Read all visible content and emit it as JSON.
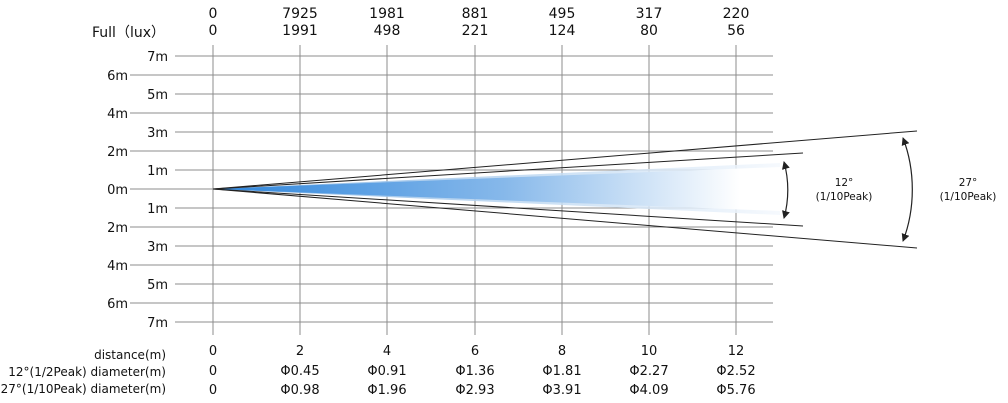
{
  "header": {
    "lux_label": "Full（lux）",
    "row1": [
      "0",
      "7925",
      "1981",
      "881",
      "495",
      "317",
      "220"
    ],
    "row2": [
      "0",
      "1991",
      "498",
      "221",
      "124",
      "80",
      "56"
    ]
  },
  "y_axis": {
    "upper_outer": [
      "6m",
      "4m",
      "2m"
    ],
    "upper_inner": [
      "7m",
      "5m",
      "3m",
      "1m"
    ],
    "center": "0m",
    "lower_inner": [
      "1m",
      "3m",
      "5m",
      "7m"
    ],
    "lower_outer": [
      "2m",
      "4m",
      "6m"
    ]
  },
  "distance_row": {
    "label": "distance(m)",
    "values": [
      "0",
      "2",
      "4",
      "6",
      "8",
      "10",
      "12"
    ]
  },
  "diameter_12_row": {
    "label": "12°(1/2Peak) diameter(m)",
    "values": [
      "0",
      "Φ0.45",
      "Φ0.91",
      "Φ1.36",
      "Φ1.81",
      "Φ2.27",
      "Φ2.52"
    ]
  },
  "diameter_27_row": {
    "label": "27°(1/10Peak) diameter(m)",
    "values": [
      "0",
      "Φ0.98",
      "Φ1.96",
      "Φ2.93",
      "Φ3.91",
      "Φ4.09",
      "Φ5.76"
    ]
  },
  "angle_12": {
    "degrees": "12°",
    "note": "(1/10Peak)"
  },
  "angle_27": {
    "degrees": "27°",
    "note": "(1/10Peak)"
  },
  "colors": {
    "beam_core": "#2f86dc",
    "beam_outer": "#a9c9ea",
    "grid": "#8c8c8c"
  },
  "chart_data": {
    "type": "table",
    "distance_m": [
      0,
      2,
      4,
      6,
      8,
      10,
      12
    ],
    "illuminance_lux": {
      "row1": [
        0,
        7925,
        1981,
        881,
        495,
        317,
        220
      ],
      "row2": [
        0,
        1991,
        498,
        221,
        124,
        80,
        56
      ]
    },
    "beam_diameter_m": {
      "12°(1/2Peak)": [
        0,
        0.45,
        0.91,
        1.36,
        1.81,
        2.27,
        2.52
      ],
      "27°(1/10Peak)": [
        0,
        0.98,
        1.96,
        2.93,
        3.91,
        4.09,
        5.76
      ]
    },
    "y_range_m": [
      -7,
      7
    ]
  }
}
